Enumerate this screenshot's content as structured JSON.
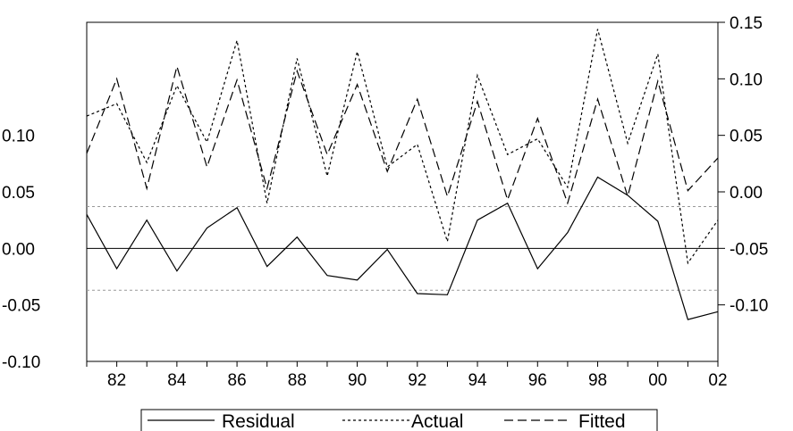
{
  "chart_data": {
    "type": "line",
    "x": [
      "81",
      "82",
      "83",
      "84",
      "85",
      "86",
      "87",
      "88",
      "89",
      "90",
      "91",
      "92",
      "93",
      "94",
      "95",
      "96",
      "97",
      "98",
      "99",
      "00",
      "01",
      "02"
    ],
    "x_tick_labels": [
      "82",
      "84",
      "86",
      "88",
      "90",
      "92",
      "94",
      "96",
      "98",
      "00",
      "02"
    ],
    "left_axis": {
      "ylim": [
        -0.1,
        0.2
      ],
      "tick_values": [
        -0.1,
        -0.05,
        0.0,
        0.05,
        0.1
      ],
      "tick_labels": [
        "-0.10",
        "-0.05",
        "0.00",
        "0.05",
        "0.10"
      ]
    },
    "right_axis": {
      "ylim": [
        -0.15,
        0.15
      ],
      "tick_values": [
        -0.1,
        -0.05,
        0.0,
        0.05,
        0.1,
        0.15
      ],
      "tick_labels": [
        "-0.10",
        "-0.05",
        "0.00",
        "0.05",
        "0.10",
        "0.15"
      ]
    },
    "residual_band": 0.037,
    "series": [
      {
        "name": "Residual",
        "axis": "left",
        "style": "solid",
        "values": [
          0.03,
          -0.018,
          0.025,
          -0.02,
          0.018,
          0.036,
          -0.016,
          0.01,
          -0.024,
          -0.028,
          -0.001,
          -0.04,
          -0.041,
          0.025,
          0.04,
          -0.018,
          0.014,
          0.063,
          0.047,
          0.024,
          -0.063,
          -0.056
        ]
      },
      {
        "name": "Actual",
        "axis": "right",
        "style": "dotted",
        "values": [
          0.067,
          0.078,
          0.026,
          0.094,
          0.044,
          0.134,
          -0.01,
          0.118,
          0.014,
          0.124,
          0.022,
          0.042,
          -0.044,
          0.103,
          0.033,
          0.047,
          0.004,
          0.144,
          0.043,
          0.122,
          -0.063,
          -0.025
        ]
      },
      {
        "name": "Fitted",
        "axis": "right",
        "style": "dashed",
        "values": [
          0.034,
          0.1,
          0.003,
          0.111,
          0.022,
          0.099,
          0.003,
          0.107,
          0.033,
          0.095,
          0.018,
          0.082,
          -0.004,
          0.08,
          -0.007,
          0.065,
          -0.01,
          0.082,
          -0.004,
          0.098,
          0.001,
          0.03
        ]
      }
    ],
    "legend": {
      "placement": "bottom-center",
      "items": [
        "Residual",
        "Actual",
        "Fitted"
      ]
    },
    "grid": false
  }
}
